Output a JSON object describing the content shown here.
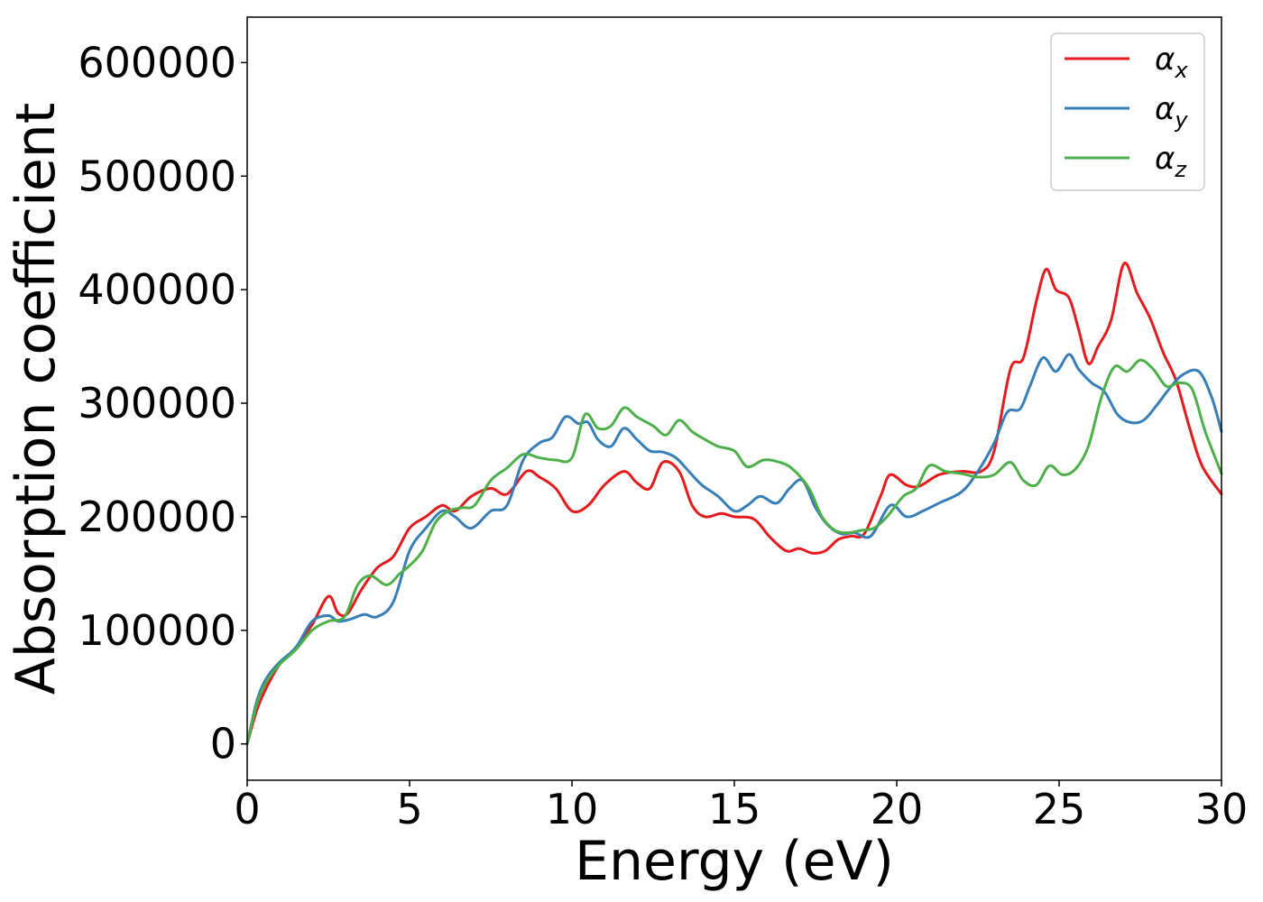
{
  "chart_data": {
    "type": "line",
    "xlabel": "Energy (eV)",
    "ylabel": "Absorption coefficient",
    "xlim": [
      0,
      30
    ],
    "ylim": [
      -32000,
      640000
    ],
    "xticks": [
      0,
      5,
      10,
      15,
      20,
      25,
      30
    ],
    "xtick_labels": [
      "0",
      "5",
      "10",
      "15",
      "20",
      "25",
      "30"
    ],
    "yticks": [
      0,
      100000,
      200000,
      300000,
      400000,
      500000,
      600000
    ],
    "ytick_labels": [
      "0",
      "100000",
      "200000",
      "300000",
      "400000",
      "500000",
      "600000"
    ],
    "grid": false,
    "legend_position": "top-right",
    "series": [
      {
        "name": "α",
        "subscript": "x",
        "color": "#e41a1c",
        "x": [
          0,
          0.3,
          0.6,
          1.0,
          1.5,
          2.0,
          2.5,
          2.8,
          3.1,
          3.5,
          4.0,
          4.5,
          5.0,
          5.5,
          6.0,
          6.4,
          6.9,
          7.5,
          8.0,
          8.6,
          9.0,
          9.5,
          10.0,
          10.5,
          11.0,
          11.6,
          12.0,
          12.4,
          12.8,
          13.3,
          13.7,
          14.1,
          14.6,
          15.0,
          15.6,
          16.1,
          16.6,
          17.0,
          17.4,
          17.8,
          18.2,
          18.6,
          19.0,
          19.5,
          19.8,
          20.3,
          20.7,
          21.3,
          22.0,
          22.6,
          23.0,
          23.5,
          23.9,
          24.3,
          24.6,
          24.9,
          25.3,
          25.6,
          25.9,
          26.2,
          26.6,
          27.0,
          27.4,
          27.8,
          28.2,
          28.6,
          29.0,
          29.4,
          30.0
        ],
        "y": [
          0,
          30000,
          50000,
          70000,
          85000,
          105000,
          130000,
          115000,
          115000,
          135000,
          155000,
          165000,
          190000,
          200000,
          210000,
          205000,
          218000,
          225000,
          220000,
          240000,
          235000,
          225000,
          205000,
          210000,
          228000,
          240000,
          230000,
          225000,
          248000,
          240000,
          210000,
          200000,
          203000,
          200000,
          198000,
          182000,
          170000,
          172000,
          168000,
          170000,
          180000,
          183000,
          185000,
          218000,
          237000,
          228000,
          227000,
          237000,
          240000,
          240000,
          258000,
          330000,
          340000,
          390000,
          418000,
          400000,
          393000,
          365000,
          335000,
          350000,
          373000,
          423000,
          397000,
          375000,
          345000,
          320000,
          280000,
          245000,
          220000
        ]
      },
      {
        "name": "α",
        "subscript": "y",
        "color": "#377eb8",
        "x": [
          0,
          0.3,
          0.6,
          1.0,
          1.5,
          2.0,
          2.5,
          2.8,
          3.2,
          3.6,
          4.0,
          4.5,
          5.0,
          5.5,
          6.0,
          6.4,
          6.9,
          7.5,
          8.0,
          8.5,
          9.0,
          9.4,
          9.8,
          10.2,
          10.5,
          10.8,
          11.2,
          11.6,
          12.0,
          12.4,
          12.8,
          13.2,
          13.6,
          14.0,
          14.5,
          15.0,
          15.4,
          15.8,
          16.3,
          16.7,
          17.1,
          17.5,
          17.9,
          18.3,
          18.7,
          19.2,
          19.8,
          20.3,
          20.8,
          21.3,
          22.0,
          22.5,
          23.0,
          23.4,
          23.8,
          24.1,
          24.5,
          24.9,
          25.3,
          25.6,
          26.0,
          26.4,
          26.8,
          27.2,
          27.6,
          28.0,
          28.4,
          28.8,
          29.3,
          29.7,
          30.0
        ],
        "y": [
          0,
          38000,
          58000,
          72000,
          85000,
          108000,
          113000,
          108000,
          110000,
          114000,
          112000,
          125000,
          170000,
          190000,
          205000,
          200000,
          190000,
          205000,
          210000,
          250000,
          265000,
          270000,
          288000,
          282000,
          283000,
          268000,
          262000,
          278000,
          268000,
          258000,
          257000,
          252000,
          240000,
          228000,
          218000,
          205000,
          210000,
          218000,
          212000,
          225000,
          232000,
          208000,
          192000,
          185000,
          186000,
          183000,
          210000,
          200000,
          205000,
          212000,
          222000,
          240000,
          265000,
          292000,
          295000,
          315000,
          340000,
          328000,
          343000,
          330000,
          318000,
          310000,
          290000,
          283000,
          285000,
          298000,
          313000,
          325000,
          328000,
          305000,
          275000
        ]
      },
      {
        "name": "α",
        "subscript": "z",
        "color": "#4daf4a",
        "x": [
          0,
          0.3,
          0.6,
          1.0,
          1.5,
          2.0,
          2.5,
          3.0,
          3.4,
          3.8,
          4.3,
          4.7,
          5.0,
          5.4,
          5.8,
          6.2,
          6.6,
          7.0,
          7.5,
          8.0,
          8.5,
          9.0,
          9.5,
          10.0,
          10.4,
          10.8,
          11.2,
          11.6,
          12.0,
          12.5,
          12.9,
          13.3,
          13.7,
          14.1,
          14.5,
          15.0,
          15.4,
          15.9,
          16.4,
          16.8,
          17.3,
          17.7,
          18.1,
          18.5,
          18.9,
          19.3,
          19.7,
          20.2,
          20.6,
          21.0,
          21.5,
          22.0,
          22.5,
          23.0,
          23.5,
          23.9,
          24.3,
          24.7,
          25.1,
          25.5,
          25.9,
          26.3,
          26.7,
          27.1,
          27.5,
          27.9,
          28.3,
          28.7,
          29.1,
          29.5,
          30.0
        ],
        "y": [
          0,
          35000,
          55000,
          70000,
          83000,
          100000,
          108000,
          112000,
          140000,
          148000,
          140000,
          150000,
          157000,
          170000,
          195000,
          205000,
          208000,
          210000,
          232000,
          243000,
          255000,
          252000,
          250000,
          252000,
          290000,
          278000,
          280000,
          296000,
          288000,
          280000,
          272000,
          285000,
          275000,
          268000,
          262000,
          258000,
          244000,
          250000,
          248000,
          242000,
          225000,
          200000,
          188000,
          186000,
          188000,
          190000,
          200000,
          218000,
          225000,
          245000,
          240000,
          238000,
          235000,
          237000,
          248000,
          232000,
          228000,
          245000,
          237000,
          242000,
          262000,
          305000,
          332000,
          328000,
          338000,
          330000,
          315000,
          318000,
          312000,
          275000,
          238000
        ]
      }
    ]
  }
}
